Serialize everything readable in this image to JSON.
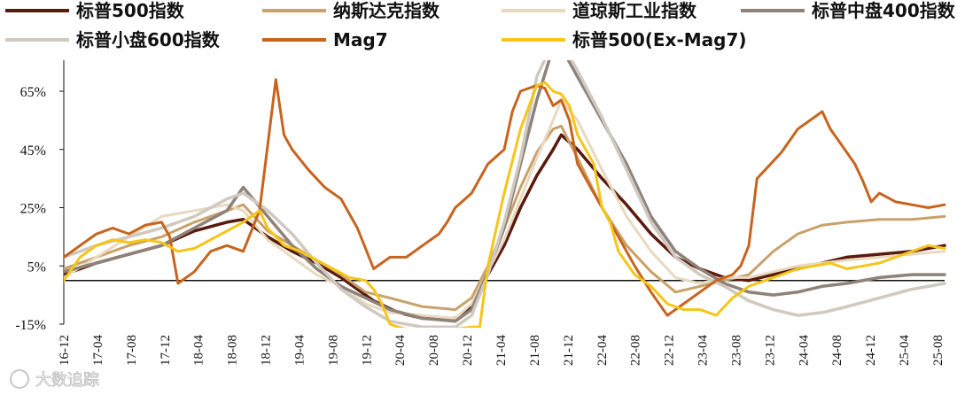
{
  "chart_data": {
    "type": "line",
    "title": "",
    "xlabel": "",
    "ylabel": "",
    "ylim": [
      -15,
      75
    ],
    "yticks": [
      "65%",
      "45%",
      "25%",
      "5%",
      "-15%"
    ],
    "ytick_values": [
      65,
      45,
      25,
      5,
      -15
    ],
    "xticks": [
      "16-12",
      "17-04",
      "17-08",
      "17-12",
      "18-04",
      "18-08",
      "18-12",
      "19-04",
      "19-08",
      "19-12",
      "20-04",
      "20-08",
      "20-12",
      "21-04",
      "21-08",
      "21-12",
      "22-04",
      "22-08",
      "22-12",
      "23-04",
      "23-08",
      "23-12",
      "24-04",
      "24-08",
      "24-12",
      "25-04",
      "25-08"
    ],
    "legend_position": "top",
    "series": [
      {
        "name": "标普500指数",
        "color": "#5a1a0e",
        "width": 3.5,
        "points": [
          [
            0,
            2
          ],
          [
            4,
            6
          ],
          [
            8,
            9
          ],
          [
            12,
            12
          ],
          [
            16,
            17
          ],
          [
            20,
            20
          ],
          [
            22,
            21
          ],
          [
            25,
            15
          ],
          [
            28,
            10
          ],
          [
            31,
            6
          ],
          [
            34,
            1
          ],
          [
            38,
            -7
          ],
          [
            41,
            -11
          ],
          [
            44,
            -13
          ],
          [
            48,
            -13
          ],
          [
            50,
            -9
          ],
          [
            52,
            2
          ],
          [
            54,
            12
          ],
          [
            56,
            25
          ],
          [
            58,
            36
          ],
          [
            60,
            45
          ],
          [
            61,
            50
          ],
          [
            63,
            45
          ],
          [
            66,
            35
          ],
          [
            69,
            26
          ],
          [
            72,
            16
          ],
          [
            75,
            8
          ],
          [
            78,
            4
          ],
          [
            81,
            1
          ],
          [
            84,
            0
          ],
          [
            87,
            2
          ],
          [
            90,
            4
          ],
          [
            93,
            6
          ],
          [
            96,
            8
          ],
          [
            100,
            9
          ],
          [
            104,
            10
          ],
          [
            108,
            12
          ]
        ]
      },
      {
        "name": "纳斯达克指数",
        "color": "#c9a26a",
        "width": 3,
        "points": [
          [
            0,
            4
          ],
          [
            4,
            8
          ],
          [
            8,
            12
          ],
          [
            12,
            15
          ],
          [
            16,
            20
          ],
          [
            20,
            24
          ],
          [
            22,
            26
          ],
          [
            25,
            17
          ],
          [
            28,
            12
          ],
          [
            31,
            7
          ],
          [
            34,
            2
          ],
          [
            37,
            -4
          ],
          [
            40,
            -6
          ],
          [
            44,
            -9
          ],
          [
            48,
            -10
          ],
          [
            50,
            -6
          ],
          [
            52,
            5
          ],
          [
            54,
            18
          ],
          [
            56,
            32
          ],
          [
            58,
            44
          ],
          [
            60,
            52
          ],
          [
            61,
            53
          ],
          [
            63,
            42
          ],
          [
            66,
            25
          ],
          [
            69,
            12
          ],
          [
            72,
            3
          ],
          [
            75,
            -4
          ],
          [
            78,
            -2
          ],
          [
            81,
            0
          ],
          [
            84,
            2
          ],
          [
            87,
            10
          ],
          [
            90,
            16
          ],
          [
            93,
            19
          ],
          [
            96,
            20
          ],
          [
            100,
            21
          ],
          [
            104,
            21
          ],
          [
            108,
            22
          ]
        ]
      },
      {
        "name": "道琼斯工业指数",
        "color": "#e8d9c0",
        "width": 3,
        "points": [
          [
            0,
            1
          ],
          [
            4,
            8
          ],
          [
            8,
            15
          ],
          [
            12,
            22
          ],
          [
            16,
            24
          ],
          [
            20,
            26
          ],
          [
            22,
            24
          ],
          [
            25,
            14
          ],
          [
            28,
            8
          ],
          [
            31,
            2
          ],
          [
            34,
            -2
          ],
          [
            37,
            -8
          ],
          [
            40,
            -11
          ],
          [
            44,
            -12
          ],
          [
            48,
            -13
          ],
          [
            50,
            -8
          ],
          [
            52,
            3
          ],
          [
            54,
            14
          ],
          [
            56,
            28
          ],
          [
            58,
            42
          ],
          [
            60,
            55
          ],
          [
            61,
            62
          ],
          [
            63,
            55
          ],
          [
            66,
            38
          ],
          [
            69,
            22
          ],
          [
            72,
            10
          ],
          [
            75,
            1
          ],
          [
            78,
            -1
          ],
          [
            81,
            1
          ],
          [
            84,
            1
          ],
          [
            87,
            3
          ],
          [
            90,
            5
          ],
          [
            93,
            6
          ],
          [
            96,
            7
          ],
          [
            100,
            8
          ],
          [
            104,
            9
          ],
          [
            108,
            10
          ]
        ]
      },
      {
        "name": "标普中盘400指数",
        "color": "#8e8279",
        "width": 3.5,
        "points": [
          [
            0,
            3
          ],
          [
            4,
            6
          ],
          [
            8,
            9
          ],
          [
            12,
            12
          ],
          [
            16,
            18
          ],
          [
            20,
            24
          ],
          [
            22,
            32
          ],
          [
            25,
            22
          ],
          [
            28,
            12
          ],
          [
            31,
            4
          ],
          [
            34,
            -2
          ],
          [
            37,
            -6
          ],
          [
            40,
            -10
          ],
          [
            44,
            -13
          ],
          [
            48,
            -14
          ],
          [
            50,
            -10
          ],
          [
            52,
            3
          ],
          [
            54,
            18
          ],
          [
            56,
            40
          ],
          [
            58,
            62
          ],
          [
            60,
            80
          ],
          [
            61,
            80
          ],
          [
            63,
            70
          ],
          [
            66,
            55
          ],
          [
            69,
            40
          ],
          [
            72,
            22
          ],
          [
            75,
            10
          ],
          [
            78,
            4
          ],
          [
            81,
            -1
          ],
          [
            84,
            -4
          ],
          [
            87,
            -5
          ],
          [
            90,
            -4
          ],
          [
            93,
            -2
          ],
          [
            96,
            -1
          ],
          [
            100,
            1
          ],
          [
            104,
            2
          ],
          [
            108,
            2
          ]
        ]
      },
      {
        "name": "标普小盘600指数",
        "color": "#cfc9c0",
        "width": 3.5,
        "points": [
          [
            0,
            8
          ],
          [
            4,
            12
          ],
          [
            8,
            15
          ],
          [
            12,
            18
          ],
          [
            16,
            22
          ],
          [
            20,
            28
          ],
          [
            22,
            30
          ],
          [
            25,
            24
          ],
          [
            28,
            16
          ],
          [
            31,
            6
          ],
          [
            34,
            -3
          ],
          [
            37,
            -9
          ],
          [
            40,
            -14
          ],
          [
            44,
            -16
          ],
          [
            48,
            -16
          ],
          [
            50,
            -12
          ],
          [
            52,
            2
          ],
          [
            54,
            20
          ],
          [
            56,
            42
          ],
          [
            58,
            70
          ],
          [
            60,
            82
          ],
          [
            61,
            82
          ],
          [
            63,
            72
          ],
          [
            66,
            56
          ],
          [
            69,
            38
          ],
          [
            72,
            20
          ],
          [
            75,
            8
          ],
          [
            78,
            2
          ],
          [
            81,
            -2
          ],
          [
            84,
            -7
          ],
          [
            87,
            -10
          ],
          [
            90,
            -12
          ],
          [
            93,
            -11
          ],
          [
            96,
            -9
          ],
          [
            100,
            -6
          ],
          [
            104,
            -3
          ],
          [
            108,
            -1
          ]
        ]
      },
      {
        "name": "Mag7",
        "color": "#c8641e",
        "width": 3,
        "points": [
          [
            0,
            8
          ],
          [
            4,
            16
          ],
          [
            6,
            18
          ],
          [
            8,
            16
          ],
          [
            10,
            19
          ],
          [
            12,
            20
          ],
          [
            13,
            15
          ],
          [
            14,
            -1
          ],
          [
            16,
            3
          ],
          [
            18,
            10
          ],
          [
            20,
            12
          ],
          [
            22,
            10
          ],
          [
            24,
            24
          ],
          [
            26,
            69
          ],
          [
            27,
            50
          ],
          [
            28,
            45
          ],
          [
            30,
            38
          ],
          [
            32,
            32
          ],
          [
            34,
            28
          ],
          [
            36,
            18
          ],
          [
            38,
            4
          ],
          [
            40,
            8
          ],
          [
            42,
            8
          ],
          [
            44,
            12
          ],
          [
            46,
            16
          ],
          [
            47,
            20
          ],
          [
            48,
            25
          ],
          [
            50,
            30
          ],
          [
            52,
            40
          ],
          [
            54,
            45
          ],
          [
            55,
            58
          ],
          [
            56,
            65
          ],
          [
            58,
            67
          ],
          [
            59,
            66
          ],
          [
            60,
            60
          ],
          [
            61,
            62
          ],
          [
            62,
            55
          ],
          [
            63,
            40
          ],
          [
            64,
            35
          ],
          [
            65,
            30
          ],
          [
            66,
            25
          ],
          [
            68,
            15
          ],
          [
            70,
            5
          ],
          [
            72,
            -4
          ],
          [
            74,
            -12
          ],
          [
            76,
            -8
          ],
          [
            78,
            -4
          ],
          [
            80,
            0
          ],
          [
            82,
            2
          ],
          [
            83,
            5
          ],
          [
            84,
            12
          ],
          [
            85,
            35
          ],
          [
            86,
            38
          ],
          [
            88,
            44
          ],
          [
            90,
            52
          ],
          [
            92,
            56
          ],
          [
            93,
            58
          ],
          [
            94,
            52
          ],
          [
            96,
            44
          ],
          [
            97,
            40
          ],
          [
            98,
            34
          ],
          [
            99,
            27
          ],
          [
            100,
            30
          ],
          [
            102,
            27
          ],
          [
            104,
            26
          ],
          [
            106,
            25
          ],
          [
            108,
            26
          ]
        ]
      },
      {
        "name": "标普500(Ex-Mag7)",
        "color": "#f5c518",
        "width": 3,
        "points": [
          [
            0,
            0
          ],
          [
            2,
            8
          ],
          [
            4,
            12
          ],
          [
            6,
            14
          ],
          [
            8,
            13
          ],
          [
            10,
            14
          ],
          [
            12,
            13
          ],
          [
            14,
            10
          ],
          [
            16,
            11
          ],
          [
            18,
            14
          ],
          [
            20,
            17
          ],
          [
            22,
            20
          ],
          [
            24,
            24
          ],
          [
            25,
            18
          ],
          [
            27,
            12
          ],
          [
            29,
            10
          ],
          [
            31,
            7
          ],
          [
            33,
            4
          ],
          [
            35,
            1
          ],
          [
            37,
            0
          ],
          [
            38,
            -3
          ],
          [
            39,
            -8
          ],
          [
            40,
            -15
          ],
          [
            41,
            -16
          ],
          [
            44,
            -18
          ],
          [
            47,
            -17
          ],
          [
            50,
            -16
          ],
          [
            51,
            -16
          ],
          [
            52,
            5
          ],
          [
            54,
            30
          ],
          [
            56,
            52
          ],
          [
            58,
            67
          ],
          [
            59,
            68
          ],
          [
            60,
            65
          ],
          [
            61,
            64
          ],
          [
            62,
            60
          ],
          [
            63,
            50
          ],
          [
            64,
            45
          ],
          [
            65,
            40
          ],
          [
            66,
            25
          ],
          [
            67,
            20
          ],
          [
            68,
            10
          ],
          [
            70,
            2
          ],
          [
            72,
            -2
          ],
          [
            74,
            -8
          ],
          [
            76,
            -10
          ],
          [
            78,
            -10
          ],
          [
            80,
            -12
          ],
          [
            82,
            -6
          ],
          [
            84,
            -2
          ],
          [
            86,
            0
          ],
          [
            88,
            2
          ],
          [
            90,
            4
          ],
          [
            92,
            5
          ],
          [
            94,
            6
          ],
          [
            96,
            4
          ],
          [
            98,
            5
          ],
          [
            100,
            6
          ],
          [
            102,
            8
          ],
          [
            104,
            10
          ],
          [
            106,
            12
          ],
          [
            108,
            11
          ]
        ]
      }
    ]
  },
  "watermark": "大数追踪"
}
